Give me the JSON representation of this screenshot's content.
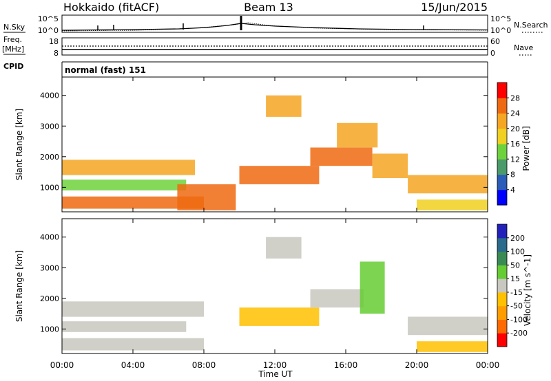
{
  "header": {
    "station": "Hokkaido (fitACF)",
    "beam": "Beam 13",
    "date": "15/Jun/2015"
  },
  "nsky_panel": {
    "left_label": "N.Sky",
    "right_label": "N.Search",
    "left_ticks": [
      "10^5",
      "10^0"
    ],
    "right_ticks": [
      "10^5",
      "10^0"
    ]
  },
  "freq_panel": {
    "left_label_1": "Freq.",
    "left_label_2": "[MHz]",
    "right_label": "Nave",
    "left_ticks": [
      "18",
      "8"
    ],
    "right_ticks": [
      "60",
      "0"
    ]
  },
  "cpid_panel": {
    "label": "CPID",
    "mode": "normal (fast) 151"
  },
  "colors": {
    "power": [
      "#0000ff",
      "#2a5cb8",
      "#4a9a6a",
      "#6ed23c",
      "#f0d020",
      "#f5a623",
      "#ee6a10",
      "#ff0000"
    ],
    "velocity": [
      "#ff0000",
      "#ff6a00",
      "#ff9d00",
      "#ffc000",
      "#c8c8c0",
      "#66cc33",
      "#3a8a55",
      "#2a6a8a",
      "#2222bb"
    ]
  },
  "chart_data": [
    {
      "type": "heatmap",
      "name": "Power",
      "ylabel": "Slant Range [km]",
      "cbar_label": "Power [dB]",
      "yticks": [
        1000,
        2000,
        3000,
        4000
      ],
      "ylim": [
        200,
        4600
      ],
      "xlim": [
        "00:00",
        "24:00"
      ],
      "cbar_ticks": [
        4,
        8,
        12,
        16,
        20,
        24,
        28
      ],
      "cbar_range": [
        0,
        32
      ],
      "bands": [
        {
          "x_start": 0,
          "x_end": 7.5,
          "y_start": 1400,
          "y_end": 1900,
          "value": 22
        },
        {
          "x_start": 0,
          "x_end": 7.0,
          "y_start": 900,
          "y_end": 1250,
          "value": 14
        },
        {
          "x_start": 0,
          "x_end": 8.0,
          "y_start": 300,
          "y_end": 700,
          "value": 24
        },
        {
          "x_start": 6.5,
          "x_end": 9.8,
          "y_start": 250,
          "y_end": 1100,
          "value": 26
        },
        {
          "x_start": 10.0,
          "x_end": 14.5,
          "y_start": 1100,
          "y_end": 1700,
          "value": 24
        },
        {
          "x_start": 14.0,
          "x_end": 17.5,
          "y_start": 1700,
          "y_end": 2300,
          "value": 26
        },
        {
          "x_start": 11.5,
          "x_end": 13.5,
          "y_start": 3300,
          "y_end": 4000,
          "value": 22
        },
        {
          "x_start": 15.5,
          "x_end": 17.8,
          "y_start": 2300,
          "y_end": 3100,
          "value": 20
        },
        {
          "x_start": 17.5,
          "x_end": 19.5,
          "y_start": 1300,
          "y_end": 2100,
          "value": 22
        },
        {
          "x_start": 19.5,
          "x_end": 24.0,
          "y_start": 800,
          "y_end": 1400,
          "value": 20
        },
        {
          "x_start": 20.0,
          "x_end": 24.0,
          "y_start": 250,
          "y_end": 600,
          "value": 18
        }
      ]
    },
    {
      "type": "heatmap",
      "name": "Velocity",
      "ylabel": "Slant Range [km]",
      "cbar_label": "Velocity [m s^-1]",
      "yticks": [
        1000,
        2000,
        3000,
        4000
      ],
      "ylim": [
        200,
        4600
      ],
      "xlim": [
        "00:00",
        "24:00"
      ],
      "cbar_ticks": [
        -200,
        -100,
        -50,
        -15,
        15,
        50,
        100,
        200
      ],
      "bands": [
        {
          "x_start": 0,
          "x_end": 8.0,
          "y_start": 1400,
          "y_end": 1900,
          "value": 0
        },
        {
          "x_start": 0,
          "x_end": 7.0,
          "y_start": 900,
          "y_end": 1250,
          "value": 0
        },
        {
          "x_start": 0,
          "x_end": 8.0,
          "y_start": 300,
          "y_end": 700,
          "value": 10
        },
        {
          "x_start": 10.0,
          "x_end": 14.5,
          "y_start": 1100,
          "y_end": 1700,
          "value": -40
        },
        {
          "x_start": 14.0,
          "x_end": 17.0,
          "y_start": 1700,
          "y_end": 2300,
          "value": 0
        },
        {
          "x_start": 16.8,
          "x_end": 18.2,
          "y_start": 1500,
          "y_end": 3200,
          "value": 40
        },
        {
          "x_start": 11.5,
          "x_end": 13.5,
          "y_start": 3300,
          "y_end": 4000,
          "value": 0
        },
        {
          "x_start": 19.5,
          "x_end": 24.0,
          "y_start": 800,
          "y_end": 1400,
          "value": 0
        },
        {
          "x_start": 20.0,
          "x_end": 24.0,
          "y_start": 250,
          "y_end": 600,
          "value": -40
        }
      ]
    }
  ],
  "x_axis": {
    "label": "Time UT",
    "ticks": [
      "00:00",
      "04:00",
      "08:00",
      "12:00",
      "16:00",
      "20:00",
      "00:00"
    ]
  }
}
